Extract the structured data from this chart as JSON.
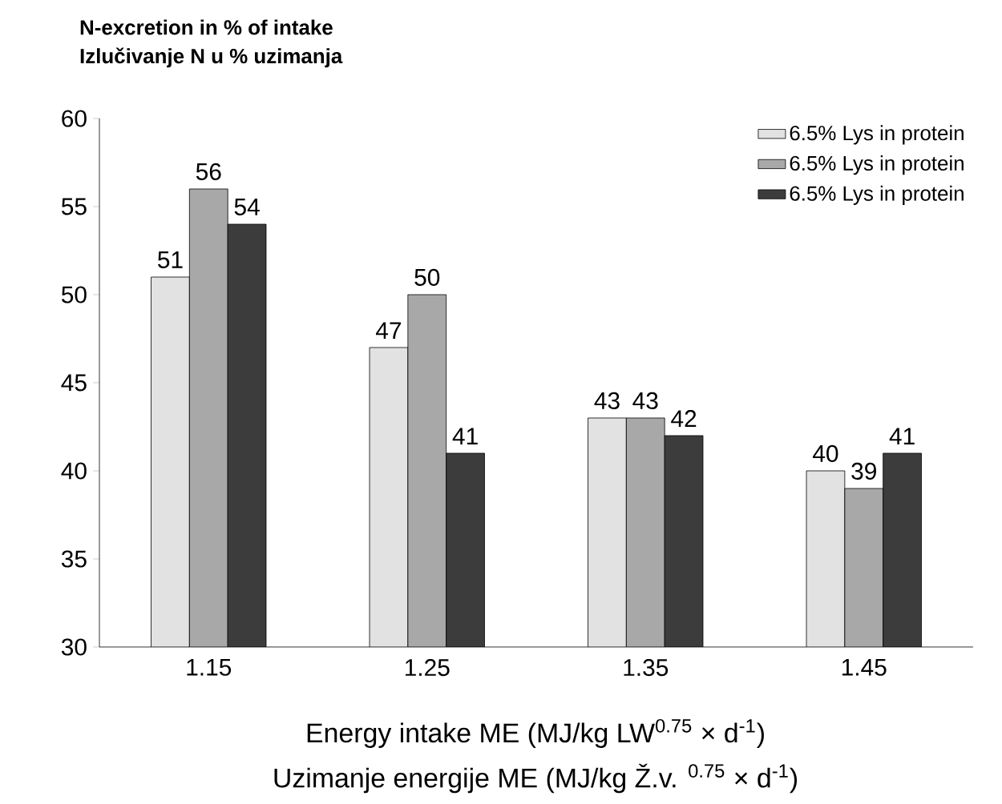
{
  "chart_data": {
    "type": "bar",
    "ylabel": "N-excretion in % of intake",
    "xlabel": "Energy intake ME (MJ/kg LW$^{0.75}$ × d$^{-1}$)",
    "annotations": [
      "Izlučivanje N u % uzimanja",
      "Uzimanje energije ME (MJ/kg Ž.v. $^{0.75}$ × d$^{-1}$)"
    ],
    "categories": [
      "1.15",
      "1.25",
      "1.35",
      "1.45"
    ],
    "series": [
      {
        "name": "6.5% Lys in protein",
        "color": "#e2e2e2",
        "values": [
          51,
          47,
          43,
          40
        ]
      },
      {
        "name": "6.5% Lys in protein",
        "color": "#a8a8a8",
        "values": [
          56,
          50,
          43,
          39
        ]
      },
      {
        "name": "6.5% Lys in protein",
        "color": "#3c3c3c",
        "values": [
          54,
          41,
          42,
          41
        ]
      }
    ],
    "ylim": [
      30,
      60
    ],
    "yticks": [
      30,
      35,
      40,
      45,
      50,
      55,
      60
    ],
    "data_labels": true,
    "legend": "top right",
    "grid": false
  }
}
